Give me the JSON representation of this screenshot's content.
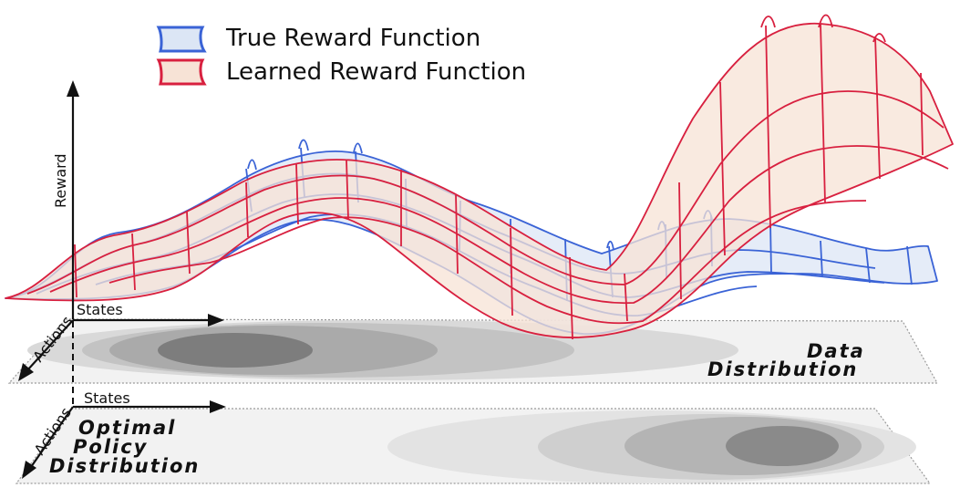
{
  "legend": {
    "true_label": "True Reward Function",
    "learned_label": "Learned Reward Function"
  },
  "axes": {
    "reward_label": "Reward",
    "states_label": "States",
    "actions_label": "Actions"
  },
  "planes": {
    "data_line1": "Data",
    "data_line2": "Distribution",
    "policy_line1": "Optimal",
    "policy_line2": "Policy",
    "policy_line3": "Distribution"
  },
  "colors": {
    "true_stroke": "#3a63d6",
    "true_fill": "#dce6f5",
    "learned_stroke": "#d8203f",
    "learned_fill": "#f7e3d6",
    "plane_fill": "#f1f1f1",
    "contour_light": "#d9d9d9",
    "contour_mid": "#bdbdbd",
    "contour_dark": "#8c8c8c"
  }
}
